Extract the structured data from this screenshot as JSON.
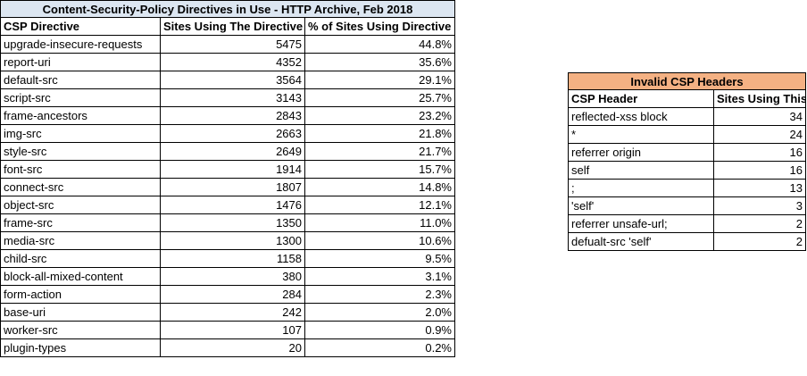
{
  "directives": {
    "title": "Content-Security-Policy Directives in Use - HTTP Archive, Feb 2018",
    "headers": [
      "CSP Directive",
      "Sites Using The Directive",
      "% of Sites Using Directive"
    ],
    "rows": [
      [
        "upgrade-insecure-requests",
        "5475",
        "44.8%"
      ],
      [
        "report-uri",
        "4352",
        "35.6%"
      ],
      [
        "default-src",
        "3564",
        "29.1%"
      ],
      [
        "script-src",
        "3143",
        "25.7%"
      ],
      [
        "frame-ancestors",
        "2843",
        "23.2%"
      ],
      [
        "img-src",
        "2663",
        "21.8%"
      ],
      [
        "style-src",
        "2649",
        "21.7%"
      ],
      [
        "font-src",
        "1914",
        "15.7%"
      ],
      [
        "connect-src",
        "1807",
        "14.8%"
      ],
      [
        "object-src",
        "1476",
        "12.1%"
      ],
      [
        "frame-src",
        "1350",
        "11.0%"
      ],
      [
        "media-src",
        "1300",
        "10.6%"
      ],
      [
        "child-src",
        "1158",
        "9.5%"
      ],
      [
        "block-all-mixed-content",
        "380",
        "3.1%"
      ],
      [
        "form-action",
        "284",
        "2.3%"
      ],
      [
        "base-uri",
        "242",
        "2.0%"
      ],
      [
        "worker-src",
        "107",
        "0.9%"
      ],
      [
        "plugin-types",
        "20",
        "0.2%"
      ]
    ]
  },
  "invalid": {
    "title": "Invalid CSP Headers",
    "headers": [
      "CSP Header",
      "Sites Using This"
    ],
    "rows": [
      [
        "reflected-xss block",
        "34"
      ],
      [
        "*",
        "24"
      ],
      [
        "referrer origin",
        "16"
      ],
      [
        "self",
        "16"
      ],
      [
        ";",
        "13"
      ],
      [
        "'self'",
        "3"
      ],
      [
        "referrer unsafe-url;",
        "2"
      ],
      [
        "defualt-src 'self'",
        "2"
      ]
    ]
  }
}
